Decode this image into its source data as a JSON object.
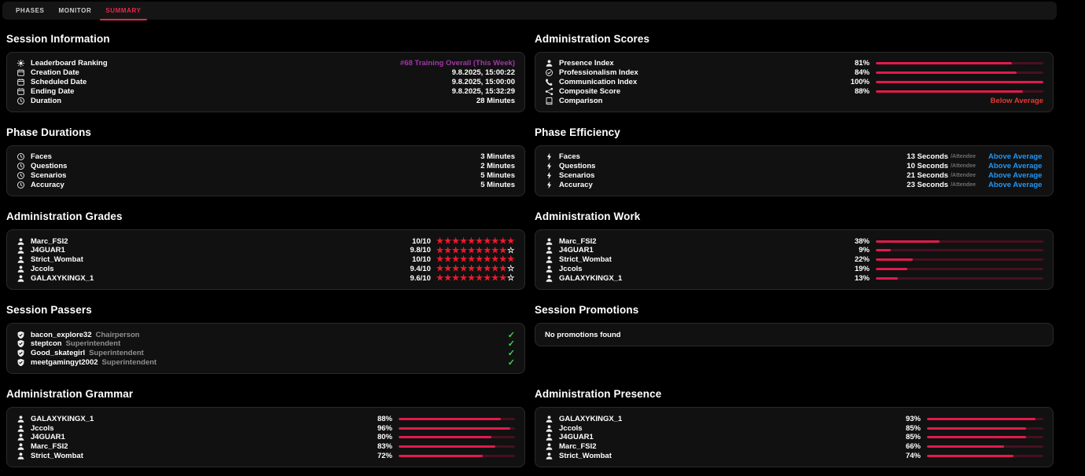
{
  "tabs": [
    {
      "label": "PHASES",
      "active": false
    },
    {
      "label": "MONITOR",
      "active": false
    },
    {
      "label": "SUMMARY",
      "active": true
    }
  ],
  "colors": {
    "accent_red": "#e11b4d",
    "track_red": "#471020",
    "star_red": "#ef1a2e",
    "status_blue": "#2196f3",
    "status_red": "#e53935",
    "link_purple": "#a335ab",
    "check_green": "#3fd43f",
    "tab_active_red": "#e5284e"
  },
  "sections": [
    {
      "id": "session-information",
      "title": "Session Information",
      "type": "info",
      "rows": [
        {
          "icon": "medal-icon",
          "label": "Leaderboard Ranking",
          "value": "#68 Training Overall (This Week)",
          "accent": "purple",
          "link": true
        },
        {
          "icon": "calendar-icon",
          "label": "Creation Date",
          "value": "9.8.2025, 15:00:22"
        },
        {
          "icon": "calendar-icon",
          "label": "Scheduled Date",
          "value": "9.8.2025, 15:00:00"
        },
        {
          "icon": "calendar-icon",
          "label": "Ending Date",
          "value": "9.8.2025, 15:32:29"
        },
        {
          "icon": "clock-icon",
          "label": "Duration",
          "value": "28 Minutes"
        }
      ]
    },
    {
      "id": "administration-scores",
      "title": "Administration Scores",
      "type": "bars",
      "bar_width": "wide",
      "rows": [
        {
          "icon": "person-icon",
          "label": "Presence Index",
          "percent": 81
        },
        {
          "icon": "check-circle-icon",
          "label": "Professionalism Index",
          "percent": 84
        },
        {
          "icon": "phone-icon",
          "label": "Communication Index",
          "percent": 100
        },
        {
          "icon": "share-icon",
          "label": "Composite Score",
          "percent": 88
        },
        {
          "icon": "book-icon",
          "label": "Comparison",
          "status": "Below Average"
        }
      ]
    },
    {
      "id": "phase-durations",
      "title": "Phase Durations",
      "type": "info",
      "rows": [
        {
          "icon": "clock-icon",
          "label": "Faces",
          "value": "3 Minutes"
        },
        {
          "icon": "clock-icon",
          "label": "Questions",
          "value": "2 Minutes"
        },
        {
          "icon": "clock-icon",
          "label": "Scenarios",
          "value": "5 Minutes"
        },
        {
          "icon": "clock-icon",
          "label": "Accuracy",
          "value": "5 Minutes"
        }
      ]
    },
    {
      "id": "phase-efficiency",
      "title": "Phase Efficiency",
      "type": "efficiency",
      "rows": [
        {
          "icon": "bolt-icon",
          "label": "Faces",
          "value": "13 Seconds",
          "unit": "/Attendee",
          "status": "Above Average"
        },
        {
          "icon": "bolt-icon",
          "label": "Questions",
          "value": "10 Seconds",
          "unit": "/Attendee",
          "status": "Above Average"
        },
        {
          "icon": "bolt-icon",
          "label": "Scenarios",
          "value": "21 Seconds",
          "unit": "/Attendee",
          "status": "Above Average"
        },
        {
          "icon": "bolt-icon",
          "label": "Accuracy",
          "value": "23 Seconds",
          "unit": "/Attendee",
          "status": "Above Average"
        }
      ]
    },
    {
      "id": "administration-grades",
      "title": "Administration Grades",
      "type": "stars",
      "rows": [
        {
          "icon": "person-icon",
          "label": "Marc_FSI2",
          "score": "10/10",
          "filled": 10,
          "outline": 0
        },
        {
          "icon": "person-icon",
          "label": "J4GUAR1",
          "score": "9.8/10",
          "filled": 9,
          "outline": 1
        },
        {
          "icon": "person-icon",
          "label": "Strict_Wombat",
          "score": "10/10",
          "filled": 10,
          "outline": 0
        },
        {
          "icon": "person-icon",
          "label": "Jccols",
          "score": "9.4/10",
          "filled": 9,
          "outline": 1
        },
        {
          "icon": "person-icon",
          "label": "GALAXYKINGX_1",
          "score": "9.6/10",
          "filled": 9,
          "outline": 1
        }
      ]
    },
    {
      "id": "administration-work",
      "title": "Administration Work",
      "type": "bars",
      "bar_width": "wide",
      "rows": [
        {
          "icon": "person-icon",
          "label": "Marc_FSI2",
          "percent": 38
        },
        {
          "icon": "person-icon",
          "label": "J4GUAR1",
          "percent": 9
        },
        {
          "icon": "person-icon",
          "label": "Strict_Wombat",
          "percent": 22
        },
        {
          "icon": "person-icon",
          "label": "Jccols",
          "percent": 19
        },
        {
          "icon": "person-icon",
          "label": "GALAXYKINGX_1",
          "percent": 13
        }
      ]
    },
    {
      "id": "session-passers",
      "title": "Session Passers",
      "type": "passers",
      "check_glyph": "✓",
      "rows": [
        {
          "icon": "shield-check-icon",
          "name": "bacon_explore32",
          "role": "Chairperson"
        },
        {
          "icon": "shield-check-icon",
          "name": "steptcon",
          "role": "Superintendent"
        },
        {
          "icon": "shield-check-icon",
          "name": "Good_skategirl",
          "role": "Superintendent"
        },
        {
          "icon": "shield-check-icon",
          "name": "meetgamingyt2002",
          "role": "Superintendent"
        }
      ]
    },
    {
      "id": "session-promotions",
      "title": "Session Promotions",
      "type": "empty",
      "message": "No promotions found"
    },
    {
      "id": "administration-grammar",
      "title": "Administration Grammar",
      "type": "bars",
      "bar_width": "narrow",
      "rows": [
        {
          "icon": "person-icon",
          "label": "GALAXYKINGX_1",
          "percent": 88
        },
        {
          "icon": "person-icon",
          "label": "Jccols",
          "percent": 96
        },
        {
          "icon": "person-icon",
          "label": "J4GUAR1",
          "percent": 80
        },
        {
          "icon": "person-icon",
          "label": "Marc_FSI2",
          "percent": 83
        },
        {
          "icon": "person-icon",
          "label": "Strict_Wombat",
          "percent": 72
        }
      ]
    },
    {
      "id": "administration-presence",
      "title": "Administration Presence",
      "type": "bars",
      "bar_width": "narrow",
      "rows": [
        {
          "icon": "person-icon",
          "label": "GALAXYKINGX_1",
          "percent": 93
        },
        {
          "icon": "person-icon",
          "label": "Jccols",
          "percent": 85
        },
        {
          "icon": "person-icon",
          "label": "J4GUAR1",
          "percent": 85
        },
        {
          "icon": "person-icon",
          "label": "Marc_FSI2",
          "percent": 66
        },
        {
          "icon": "person-icon",
          "label": "Strict_Wombat",
          "percent": 74
        }
      ]
    }
  ]
}
